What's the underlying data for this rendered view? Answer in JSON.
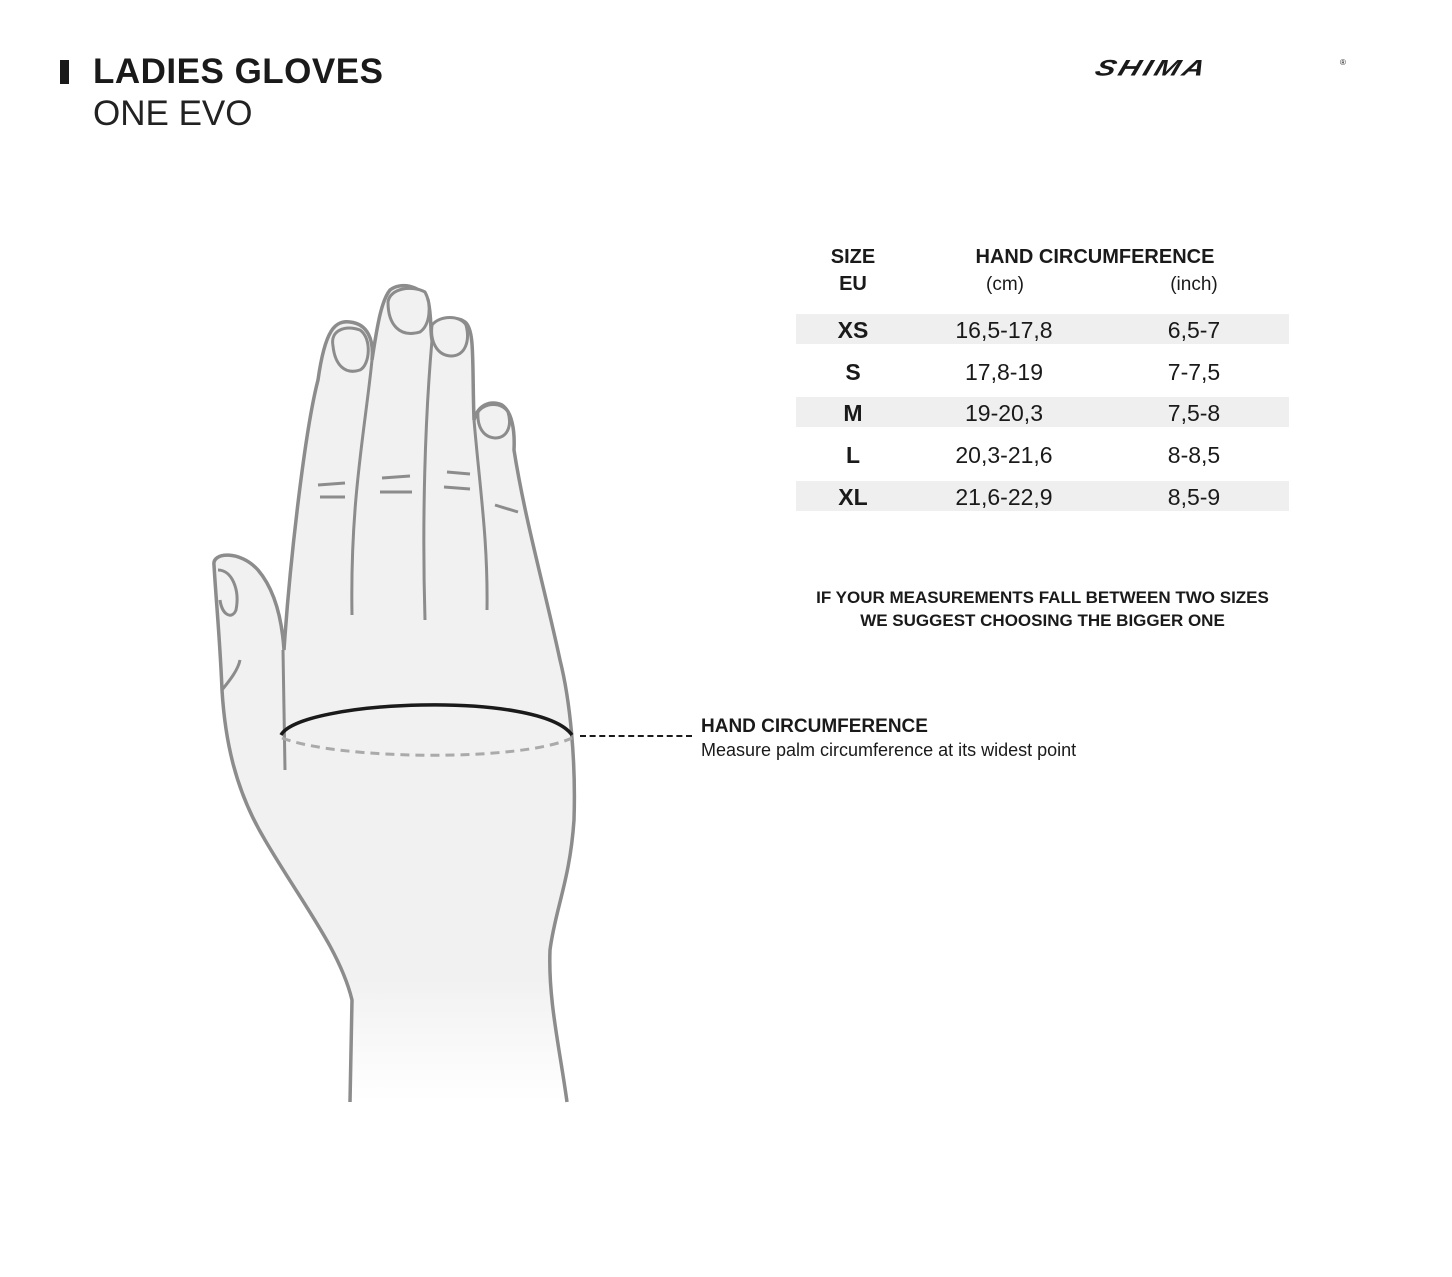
{
  "header": {
    "title": "LADIES GLOVES",
    "subtitle": "ONE EVO",
    "brand": "SHIMA",
    "brand_mark": "®"
  },
  "table": {
    "size_header": "SIZE",
    "size_sub": "EU",
    "circ_header": "HAND CIRCUMFERENCE",
    "cm_sub": "(cm)",
    "inch_sub": "(inch)",
    "rows": [
      {
        "size": "XS",
        "cm": "16,5-17,8",
        "inch": "6,5-7"
      },
      {
        "size": "S",
        "cm": "17,8-19",
        "inch": "7-7,5"
      },
      {
        "size": "M",
        "cm": "19-20,3",
        "inch": "7,5-8"
      },
      {
        "size": "L",
        "cm": "20,3-21,6",
        "inch": "8-8,5"
      },
      {
        "size": "XL",
        "cm": "21,6-22,9",
        "inch": "8,5-9"
      }
    ]
  },
  "note": {
    "line1": "IF YOUR MEASUREMENTS FALL BETWEEN TWO SIZES",
    "line2": "WE SUGGEST CHOOSING THE BIGGER ONE"
  },
  "measure": {
    "label": "HAND CIRCUMFERENCE",
    "description": "Measure palm circumference at its widest point"
  },
  "colors": {
    "row_shade": "#efefef",
    "hand_fill": "#f1f1f1",
    "hand_stroke": "#8c8c8c"
  }
}
